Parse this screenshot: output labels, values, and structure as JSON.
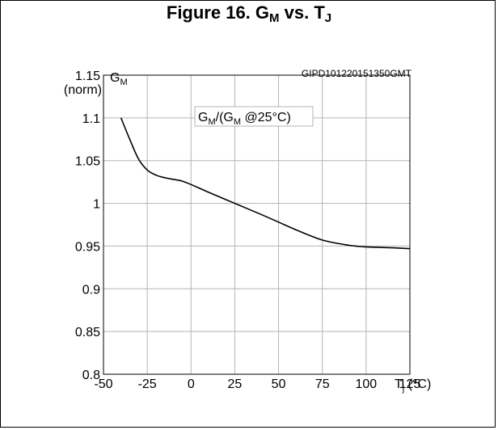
{
  "chart_data": {
    "type": "line",
    "title": {
      "main": "Figure 16. G",
      "sub1": "M",
      "mid": " vs. T",
      "sub2": "J"
    },
    "ylabel": {
      "main": "G",
      "sub": "M",
      "line2": "(norm)"
    },
    "xlabel": {
      "main": "T",
      "sub": "j",
      "unit": " (°C)"
    },
    "figure_code": "GIPD101220151350GMT",
    "annotation": {
      "p1": "G",
      "s1": "M",
      "p2": "/(G",
      "s2": "M",
      "p3": " @25°C)"
    },
    "xlim": [
      -50,
      125
    ],
    "ylim": [
      0.8,
      1.15
    ],
    "x_ticks": [
      -50,
      -25,
      0,
      25,
      50,
      75,
      100,
      125
    ],
    "y_ticks": [
      0.8,
      0.85,
      0.9,
      0.95,
      1,
      1.05,
      1.1,
      1.15
    ],
    "x_tick_labels": [
      "-50",
      "-25",
      "0",
      "25",
      "50",
      "75",
      "100",
      "125"
    ],
    "y_tick_labels": [
      "0.8",
      "0.85",
      "0.9",
      "0.95",
      "1",
      "1.05",
      "1.1",
      "1.15"
    ],
    "grid": true,
    "series": [
      {
        "x": [
          -40,
          -35,
          -30,
          -25,
          -20,
          -15,
          -10,
          -5,
          0,
          10,
          25,
          40,
          50,
          60,
          75,
          90,
          100,
          115,
          125
        ],
        "y": [
          1.1,
          1.075,
          1.052,
          1.039,
          1.033,
          1.03,
          1.028,
          1.026,
          1.022,
          1.013,
          1.0,
          0.987,
          0.978,
          0.969,
          0.957,
          0.951,
          0.949,
          0.948,
          0.947
        ]
      }
    ]
  }
}
